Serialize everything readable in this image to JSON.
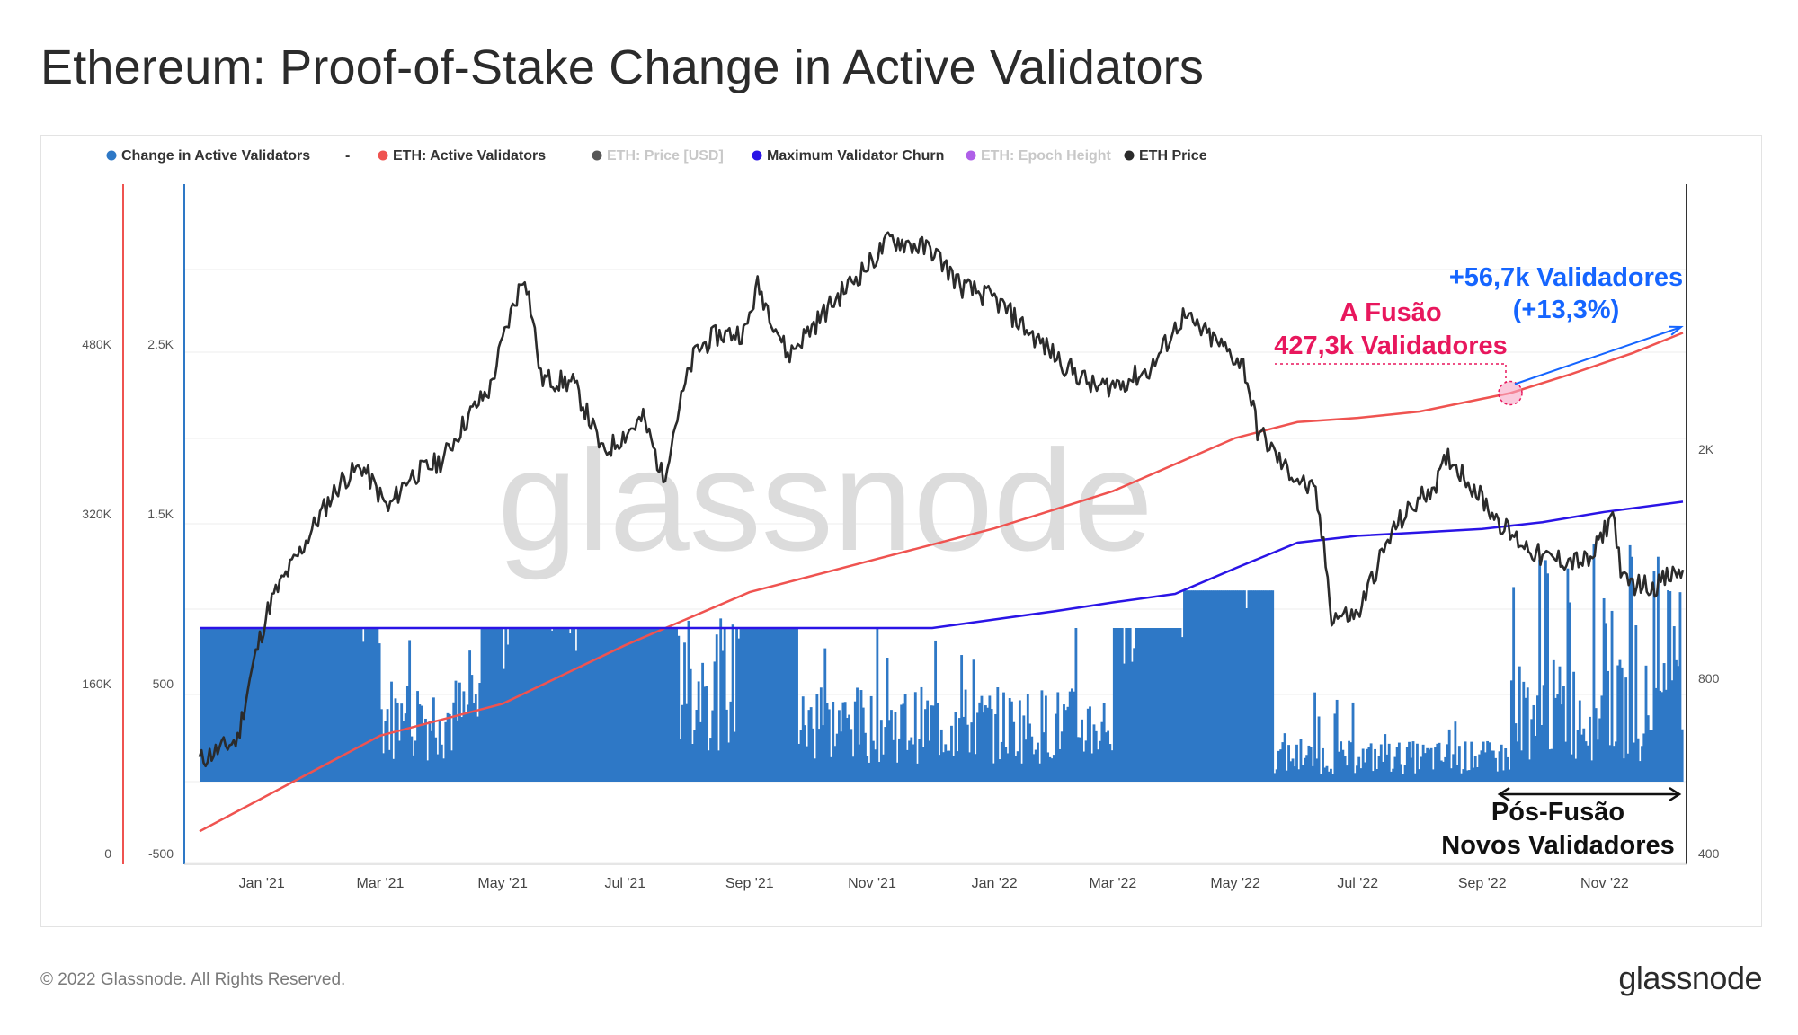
{
  "page": {
    "title": "Ethereum: Proof-of-Stake Change in Active Validators",
    "copyright": "© 2022 Glassnode. All Rights Reserved.",
    "brand": "glassnode",
    "watermark": "glassnode"
  },
  "colors": {
    "change_bars": "#2e78c6",
    "active_validators": "#ef5350",
    "eth_price": "#2b2b2b",
    "max_churn": "#2a14e6",
    "epoch_height": "#a64ee6",
    "annotation_pink": "#e8175d",
    "annotation_blue": "#1565ff",
    "axis_red": "#ef5350",
    "axis_blue": "#2e78c6",
    "axis_dark": "#333333"
  },
  "chart_data": {
    "type": "bar+line",
    "legend": [
      {
        "name": "Change in Active Validators",
        "color": "#2e78c6",
        "muted": false
      },
      {
        "name": "-",
        "color": "",
        "muted": false
      },
      {
        "name": "ETH: Active Validators",
        "color": "#ef5350",
        "muted": false
      },
      {
        "name": "ETH: Price [USD]",
        "color": "#444444",
        "muted": true
      },
      {
        "name": "Maximum Validator Churn",
        "color": "#2a14e6",
        "muted": false
      },
      {
        "name": "ETH: Epoch Height",
        "color": "#a64ee6",
        "muted": true
      },
      {
        "name": "ETH Price",
        "color": "#2b2b2b",
        "muted": false
      }
    ],
    "x_ticks": [
      "Jan '21",
      "Mar '21",
      "May '21",
      "Jul '21",
      "Sep '21",
      "Nov '21",
      "Jan '22",
      "Mar '22",
      "May '22",
      "Jul '22",
      "Sep '22",
      "Nov '22"
    ],
    "x_range": [
      "2020-12-01",
      "2022-12-10"
    ],
    "axes": {
      "active_validators": {
        "ticks": [
          "0",
          "160K",
          "320K",
          "480K"
        ],
        "range": [
          0,
          500000
        ],
        "side": "left-outer"
      },
      "change": {
        "ticks": [
          "-500",
          "500",
          "1.5K",
          "2.5K"
        ],
        "range": [
          -500,
          2800
        ],
        "side": "left-inner"
      },
      "price": {
        "ticks": [
          "400",
          "800",
          "2K"
        ],
        "scale": "log",
        "range": [
          400,
          4800
        ],
        "side": "right"
      }
    },
    "series": [
      {
        "name": "ETH: Active Validators",
        "x": [
          "2020-12-01",
          "2021-01-15",
          "2021-03-01",
          "2021-05-01",
          "2021-07-01",
          "2021-09-01",
          "2021-11-01",
          "2022-01-01",
          "2022-03-01",
          "2022-05-01",
          "2022-06-01",
          "2022-07-01",
          "2022-08-01",
          "2022-09-15",
          "2022-10-15",
          "2022-11-15",
          "2022-12-10"
        ],
        "values": [
          15000,
          60000,
          105000,
          135000,
          190000,
          240000,
          270000,
          300000,
          335000,
          385000,
          400000,
          404000,
          410000,
          427300,
          445000,
          465000,
          484000
        ]
      },
      {
        "name": "Maximum Validator Churn",
        "x": [
          "2020-12-01",
          "2021-12-01",
          "2022-01-01",
          "2022-02-01",
          "2022-03-01",
          "2022-04-01",
          "2022-05-01",
          "2022-06-01",
          "2022-07-01",
          "2022-08-01",
          "2022-09-01",
          "2022-10-01",
          "2022-11-01",
          "2022-12-10"
        ],
        "values": [
          900,
          900,
          950,
          1000,
          1050,
          1100,
          1250,
          1400,
          1440,
          1460,
          1480,
          1520,
          1580,
          1640
        ]
      },
      {
        "name": "ETH Price",
        "x": [
          "2020-12-01",
          "2020-12-20",
          "2021-01-05",
          "2021-01-20",
          "2021-02-10",
          "2021-02-20",
          "2021-03-05",
          "2021-03-15",
          "2021-04-01",
          "2021-04-15",
          "2021-04-25",
          "2021-05-12",
          "2021-05-20",
          "2021-06-05",
          "2021-06-20",
          "2021-07-10",
          "2021-07-20",
          "2021-08-05",
          "2021-08-15",
          "2021-08-30",
          "2021-09-05",
          "2021-09-20",
          "2021-10-05",
          "2021-10-20",
          "2021-11-01",
          "2021-11-10",
          "2021-12-01",
          "2021-12-15",
          "2022-01-01",
          "2022-01-20",
          "2022-02-05",
          "2022-02-20",
          "2022-03-05",
          "2022-03-20",
          "2022-04-05",
          "2022-04-20",
          "2022-05-05",
          "2022-05-12",
          "2022-05-25",
          "2022-06-10",
          "2022-06-18",
          "2022-07-01",
          "2022-07-20",
          "2022-08-10",
          "2022-08-15",
          "2022-09-05",
          "2022-09-15",
          "2022-10-01",
          "2022-10-25",
          "2022-11-05",
          "2022-11-10",
          "2022-11-25",
          "2022-12-10"
        ],
        "values": [
          590,
          640,
          1100,
          1350,
          1800,
          1900,
          1600,
          1820,
          1950,
          2350,
          2600,
          4100,
          2700,
          2650,
          2000,
          2300,
          1800,
          3000,
          3200,
          3250,
          3900,
          2950,
          3400,
          3900,
          4300,
          4700,
          4500,
          3900,
          3700,
          3200,
          2850,
          2600,
          2650,
          2800,
          3450,
          3150,
          2850,
          2200,
          1900,
          1700,
          1050,
          1050,
          1500,
          1800,
          1980,
          1600,
          1450,
          1320,
          1300,
          1580,
          1200,
          1180,
          1260
        ]
      },
      {
        "name": "Change in Active Validators",
        "values_note": "daily bars, baseline 0",
        "segments": [
          {
            "from": "2020-12-01",
            "to": "2021-03-01",
            "level": 900,
            "pattern": "capped"
          },
          {
            "from": "2021-03-01",
            "to": "2021-04-20",
            "level": 400,
            "pattern": "noisy"
          },
          {
            "from": "2021-04-20",
            "to": "2021-06-25",
            "level": 900,
            "pattern": "capped"
          },
          {
            "from": "2021-06-25",
            "to": "2021-07-25",
            "level": 900,
            "pattern": "capped"
          },
          {
            "from": "2021-07-25",
            "to": "2021-08-25",
            "level": 600,
            "pattern": "noisy"
          },
          {
            "from": "2021-08-25",
            "to": "2021-09-25",
            "level": 900,
            "pattern": "capped"
          },
          {
            "from": "2021-09-25",
            "to": "2022-03-01",
            "level": 350,
            "pattern": "noisy"
          },
          {
            "from": "2022-03-01",
            "to": "2022-04-05",
            "level": 900,
            "pattern": "capped"
          },
          {
            "from": "2022-04-05",
            "to": "2022-05-20",
            "level": 1120,
            "pattern": "capped"
          },
          {
            "from": "2022-05-20",
            "to": "2022-09-15",
            "level": 150,
            "pattern": "noisy"
          },
          {
            "from": "2022-09-15",
            "to": "2022-12-10",
            "level": 600,
            "pattern": "spiky"
          }
        ]
      }
    ],
    "annotations": {
      "merge_title": "A Fusão",
      "merge_value": "427,3k Validadores",
      "growth_value": "+56,7k Validadores",
      "growth_pct": "(+13,3%)",
      "post_merge_line1": "Pós-Fusão",
      "post_merge_line2": "Novos Validadores"
    }
  }
}
